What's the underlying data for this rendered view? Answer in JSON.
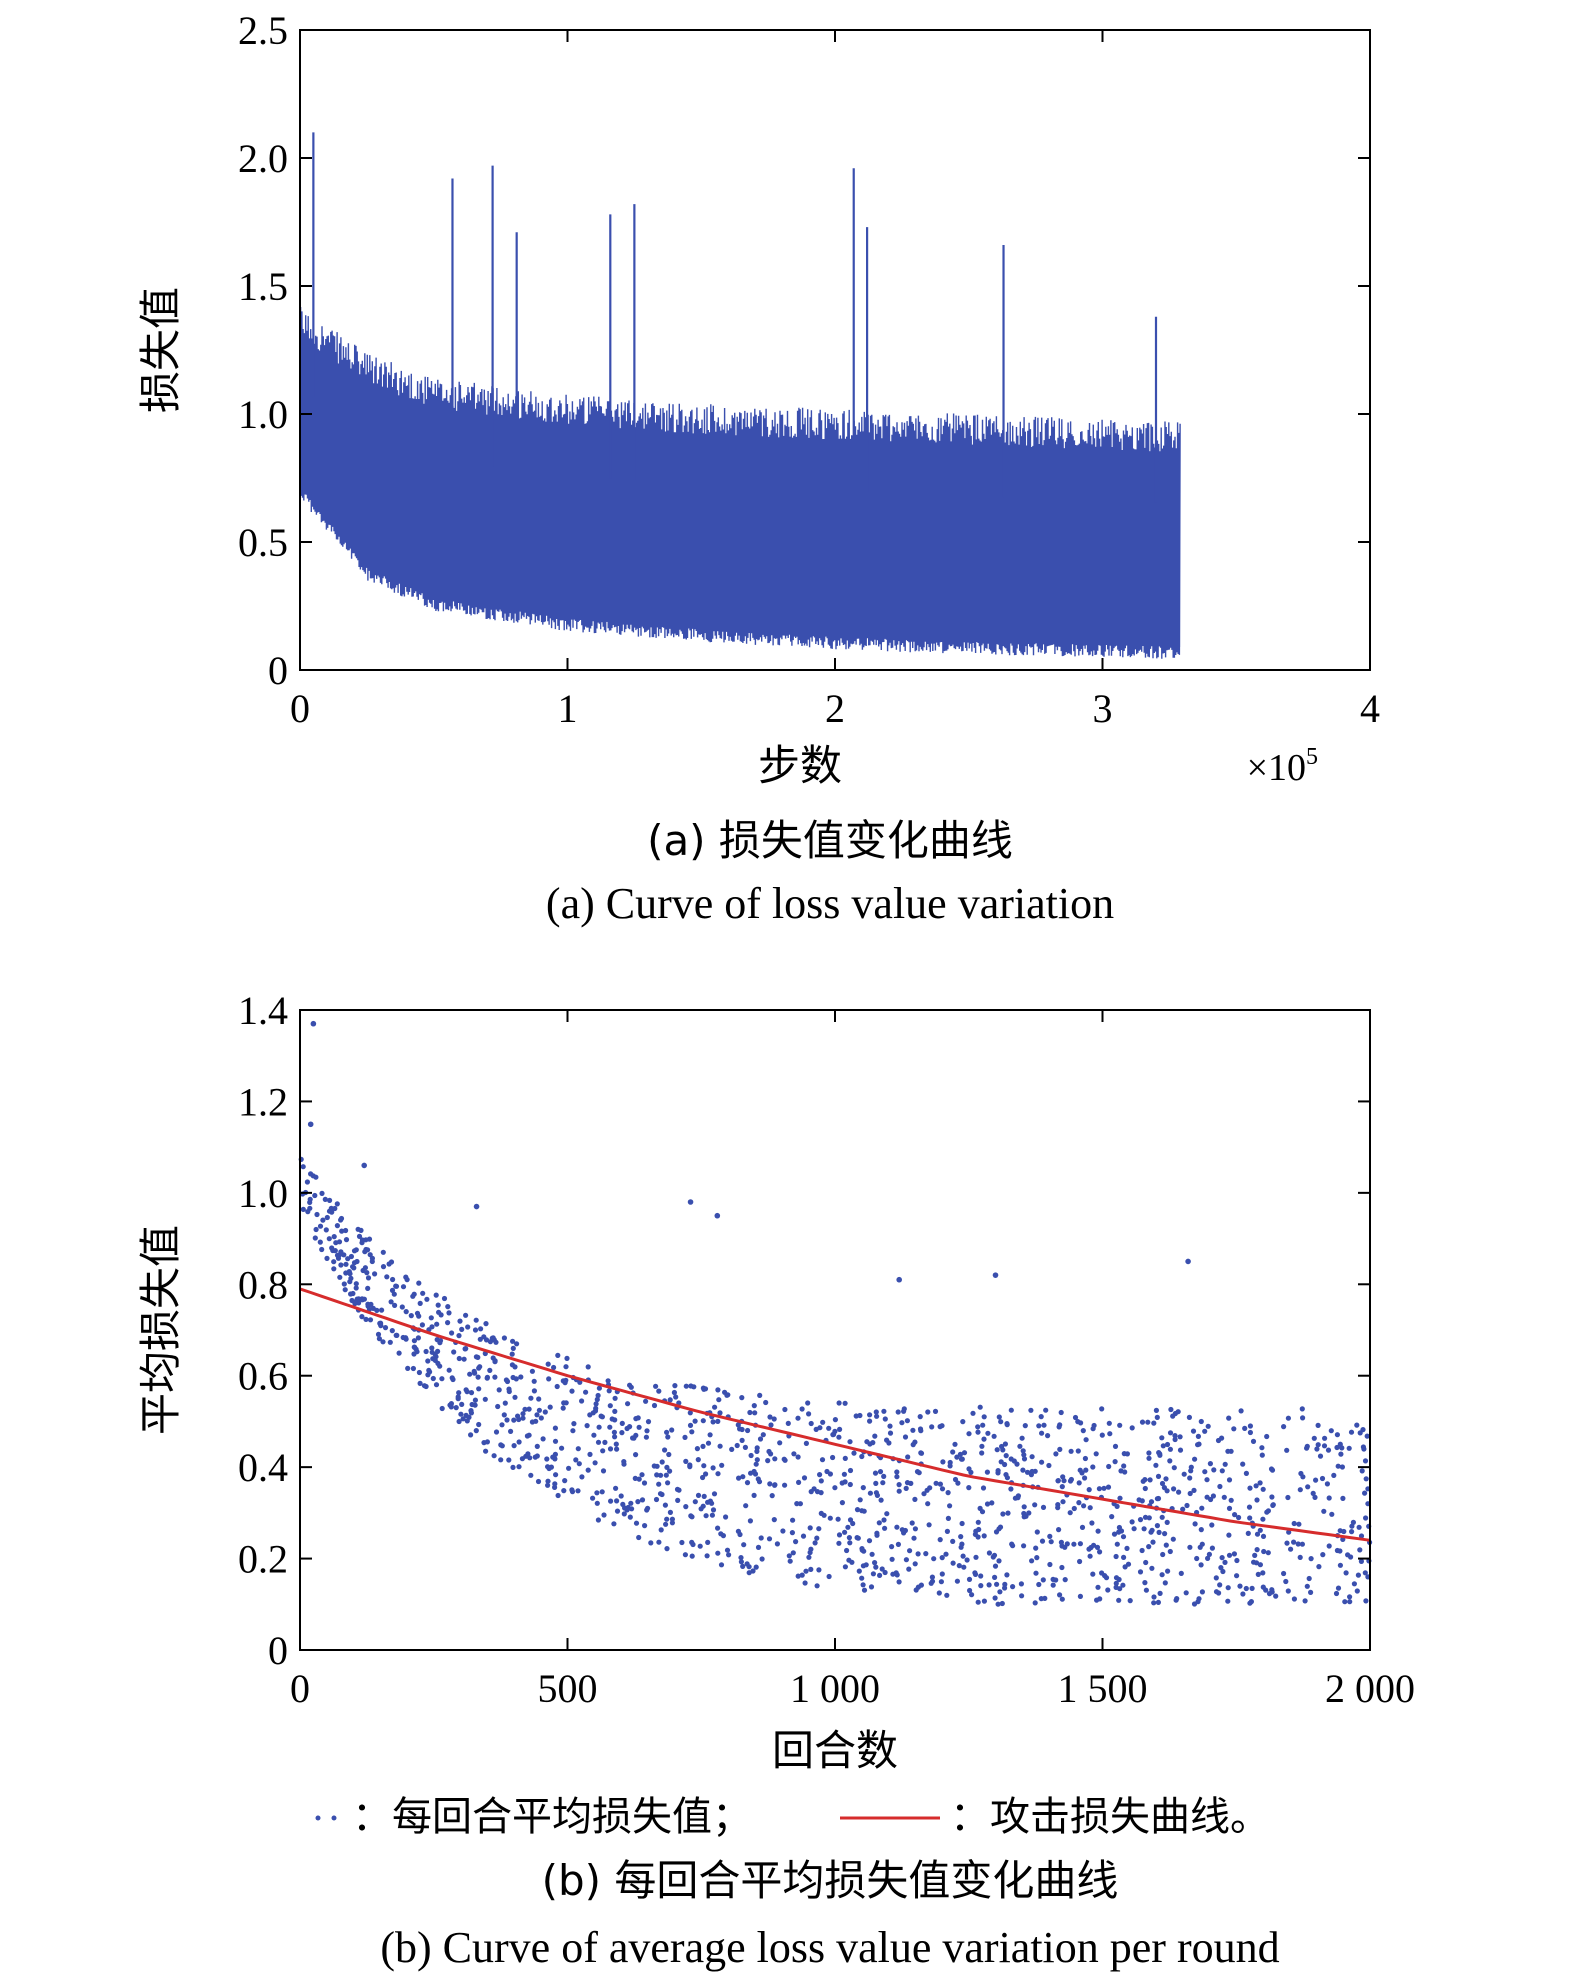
{
  "chart_data": [
    {
      "type": "line",
      "caption_cn": "(a) 损失值变化曲线",
      "caption_en": "(a) Curve of loss value variation",
      "xlabel": "步数",
      "ylabel": "损失值",
      "x_multiplier": "×10",
      "x_multiplier_exp": "5",
      "xlim": [
        0,
        4
      ],
      "ylim": [
        0,
        2.5
      ],
      "xticks": [
        0,
        1,
        2,
        3,
        4
      ],
      "xtick_labels": [
        "0",
        "1",
        "2",
        "3",
        "4"
      ],
      "yticks": [
        0,
        0.5,
        1.0,
        1.5,
        2.0,
        2.5
      ],
      "ytick_labels": [
        "0",
        "0.5",
        "1.0",
        "1.5",
        "2.0",
        "2.5"
      ],
      "line_color": "#3a4fae",
      "data_range_x": [
        0,
        3.29
      ],
      "spikes": [
        {
          "x": 0.05,
          "y": 2.1
        },
        {
          "x": 0.57,
          "y": 1.92
        },
        {
          "x": 0.72,
          "y": 1.97
        },
        {
          "x": 0.81,
          "y": 1.71
        },
        {
          "x": 1.16,
          "y": 1.78
        },
        {
          "x": 1.25,
          "y": 1.82
        },
        {
          "x": 2.07,
          "y": 1.96
        },
        {
          "x": 2.12,
          "y": 1.73
        },
        {
          "x": 2.63,
          "y": 1.66
        },
        {
          "x": 3.2,
          "y": 1.38
        }
      ],
      "trend": {
        "x": [
          0,
          0.25,
          0.5,
          1.0,
          1.5,
          2.0,
          2.5,
          3.0,
          3.29
        ],
        "upper": [
          1.3,
          1.12,
          1.02,
          0.96,
          0.92,
          0.9,
          0.88,
          0.86,
          0.85
        ],
        "lower": [
          0.72,
          0.4,
          0.28,
          0.2,
          0.16,
          0.13,
          0.11,
          0.1,
          0.09
        ]
      }
    },
    {
      "type": "scatter",
      "caption_cn": "(b) 每回合平均损失值变化曲线",
      "caption_en": "(b) Curve of average loss value variation per round",
      "xlabel": "回合数",
      "ylabel": "平均损失值",
      "xlim": [
        0,
        2000
      ],
      "ylim": [
        0,
        1.4
      ],
      "xticks": [
        0,
        500,
        1000,
        1500,
        2000
      ],
      "xtick_labels": [
        "0",
        "500",
        "1 000",
        "1 500",
        "2 000"
      ],
      "yticks": [
        0,
        0.2,
        0.4,
        0.6,
        0.8,
        1.0,
        1.2,
        1.4
      ],
      "ytick_labels": [
        "0",
        "0.2",
        "0.4",
        "0.6",
        "0.8",
        "1.0",
        "1.2",
        "1.4"
      ],
      "scatter_color": "#3a4fae",
      "fit_color": "#d62c2c",
      "fit_line": {
        "x": [
          0,
          250,
          500,
          750,
          1000,
          1250,
          1500,
          1750,
          2000
        ],
        "y": [
          0.79,
          0.69,
          0.6,
          0.52,
          0.45,
          0.38,
          0.33,
          0.28,
          0.24
        ]
      },
      "scatter_outliers": [
        {
          "x": 25,
          "y": 1.37
        },
        {
          "x": 20,
          "y": 1.15
        },
        {
          "x": 120,
          "y": 1.06
        },
        {
          "x": 330,
          "y": 0.97
        },
        {
          "x": 730,
          "y": 0.98
        },
        {
          "x": 780,
          "y": 0.95
        },
        {
          "x": 1300,
          "y": 0.82
        },
        {
          "x": 1660,
          "y": 0.85
        },
        {
          "x": 1120,
          "y": 0.81
        }
      ],
      "legend": {
        "series1_label": "：每回合平均损失值；",
        "series2_label": "：攻击损失曲线。"
      }
    }
  ]
}
